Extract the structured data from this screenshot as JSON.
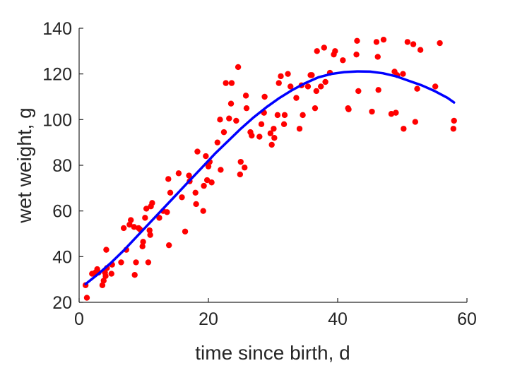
{
  "chart_data": {
    "type": "scatter",
    "title": "",
    "xlabel": "time since birth, d",
    "ylabel": "wet weight, g",
    "xlim": [
      0,
      60
    ],
    "ylim": [
      20,
      140
    ],
    "xticks": [
      0,
      20,
      40,
      60
    ],
    "yticks": [
      20,
      40,
      60,
      80,
      100,
      120,
      140
    ],
    "grid": false,
    "box": false,
    "series": [
      {
        "kind": "scatter",
        "color": "#ff0000",
        "marker": "dot",
        "points": [
          [
            1.0,
            27.5
          ],
          [
            1.2,
            22.0
          ],
          [
            2.0,
            32.5
          ],
          [
            2.5,
            33.0
          ],
          [
            2.8,
            34.5
          ],
          [
            3.0,
            33.0
          ],
          [
            3.6,
            27.5
          ],
          [
            3.8,
            29.5
          ],
          [
            4.0,
            33.0
          ],
          [
            4.1,
            31.5
          ],
          [
            4.3,
            35.0
          ],
          [
            4.2,
            43.0
          ],
          [
            5.0,
            32.5
          ],
          [
            5.1,
            36.5
          ],
          [
            6.5,
            37.5
          ],
          [
            6.9,
            52.5
          ],
          [
            7.3,
            43.0
          ],
          [
            7.8,
            54.0
          ],
          [
            8.0,
            56.0
          ],
          [
            8.5,
            53.0
          ],
          [
            8.6,
            32.0
          ],
          [
            8.8,
            37.5
          ],
          [
            9.2,
            52.5
          ],
          [
            9.4,
            52.0
          ],
          [
            9.8,
            44.5
          ],
          [
            9.9,
            46.5
          ],
          [
            10.2,
            57.0
          ],
          [
            10.4,
            61.0
          ],
          [
            10.7,
            37.5
          ],
          [
            10.9,
            51.5
          ],
          [
            11.0,
            49.5
          ],
          [
            11.1,
            62.0
          ],
          [
            11.3,
            63.5
          ],
          [
            12.4,
            57.0
          ],
          [
            13.0,
            60.0
          ],
          [
            13.6,
            59.5
          ],
          [
            13.8,
            74.0
          ],
          [
            13.9,
            45.0
          ],
          [
            14.1,
            68.0
          ],
          [
            15.4,
            76.5
          ],
          [
            15.9,
            66.0
          ],
          [
            16.4,
            51.0
          ],
          [
            17.0,
            75.5
          ],
          [
            17.1,
            73.0
          ],
          [
            18.0,
            68.0
          ],
          [
            18.1,
            63.0
          ],
          [
            18.3,
            86.0
          ],
          [
            19.2,
            60.0
          ],
          [
            19.3,
            71.0
          ],
          [
            19.6,
            84.0
          ],
          [
            19.8,
            73.5
          ],
          [
            20.0,
            79.5
          ],
          [
            20.2,
            81.5
          ],
          [
            20.5,
            72.5
          ],
          [
            21.4,
            90.0
          ],
          [
            21.8,
            100.0
          ],
          [
            21.9,
            78.0
          ],
          [
            22.4,
            94.5
          ],
          [
            22.7,
            116.0
          ],
          [
            23.2,
            100.5
          ],
          [
            23.5,
            107.0
          ],
          [
            23.6,
            116.0
          ],
          [
            24.3,
            99.5
          ],
          [
            24.6,
            123.0
          ],
          [
            24.9,
            76.0
          ],
          [
            25.0,
            81.5
          ],
          [
            25.6,
            79.0
          ],
          [
            25.8,
            110.5
          ],
          [
            25.9,
            105.0
          ],
          [
            26.5,
            94.5
          ],
          [
            26.7,
            93.0
          ],
          [
            27.9,
            92.5
          ],
          [
            28.2,
            98.0
          ],
          [
            28.6,
            103.0
          ],
          [
            28.7,
            110.0
          ],
          [
            29.6,
            94.0
          ],
          [
            29.8,
            89.0
          ],
          [
            30.1,
            96.0
          ],
          [
            30.2,
            92.0
          ],
          [
            30.7,
            102.0
          ],
          [
            30.9,
            116.0
          ],
          [
            31.2,
            119.0
          ],
          [
            31.7,
            98.0
          ],
          [
            31.8,
            102.0
          ],
          [
            32.3,
            120.0
          ],
          [
            32.7,
            114.5
          ],
          [
            33.6,
            109.5
          ],
          [
            34.1,
            96.0
          ],
          [
            34.4,
            115.0
          ],
          [
            34.6,
            102.0
          ],
          [
            35.4,
            114.5
          ],
          [
            35.8,
            119.5
          ],
          [
            36.0,
            119.5
          ],
          [
            36.5,
            105.0
          ],
          [
            36.7,
            112.5
          ],
          [
            36.8,
            130.0
          ],
          [
            37.4,
            114.5
          ],
          [
            37.9,
            131.5
          ],
          [
            38.1,
            116.5
          ],
          [
            38.8,
            120.5
          ],
          [
            39.4,
            128.5
          ],
          [
            39.6,
            130.0
          ],
          [
            40.8,
            126.0
          ],
          [
            41.6,
            105.0
          ],
          [
            41.7,
            104.5
          ],
          [
            42.9,
            128.5
          ],
          [
            43.0,
            134.5
          ],
          [
            43.2,
            112.5
          ],
          [
            45.3,
            103.5
          ],
          [
            46.0,
            134.0
          ],
          [
            46.2,
            127.5
          ],
          [
            46.3,
            113.0
          ],
          [
            47.1,
            135.0
          ],
          [
            48.3,
            102.5
          ],
          [
            48.8,
            121.0
          ],
          [
            49.0,
            103.0
          ],
          [
            49.2,
            119.5
          ],
          [
            50.1,
            120.0
          ],
          [
            50.2,
            96.0
          ],
          [
            50.8,
            134.0
          ],
          [
            51.7,
            133.0
          ],
          [
            52.0,
            99.0
          ],
          [
            52.3,
            113.5
          ],
          [
            52.8,
            130.5
          ],
          [
            55.1,
            114.5
          ],
          [
            55.8,
            133.5
          ],
          [
            57.9,
            96.0
          ],
          [
            58.0,
            99.5
          ]
        ]
      },
      {
        "kind": "line",
        "color": "#0000ff",
        "points": [
          [
            1,
            28
          ],
          [
            3,
            32.5
          ],
          [
            5,
            37.5
          ],
          [
            7,
            43
          ],
          [
            9,
            49
          ],
          [
            11,
            55
          ],
          [
            13,
            61
          ],
          [
            15,
            67
          ],
          [
            17,
            73
          ],
          [
            19,
            79
          ],
          [
            21,
            85
          ],
          [
            23,
            90.5
          ],
          [
            25,
            96
          ],
          [
            27,
            101
          ],
          [
            29,
            105.5
          ],
          [
            31,
            109.5
          ],
          [
            33,
            113
          ],
          [
            35,
            116
          ],
          [
            37,
            118.5
          ],
          [
            39,
            120
          ],
          [
            41,
            120.8
          ],
          [
            43,
            121.1
          ],
          [
            45,
            121
          ],
          [
            47,
            120.3
          ],
          [
            49,
            119
          ],
          [
            51,
            117
          ],
          [
            53,
            115
          ],
          [
            55,
            112.5
          ],
          [
            57,
            109.5
          ],
          [
            58,
            107.5
          ]
        ]
      }
    ]
  }
}
